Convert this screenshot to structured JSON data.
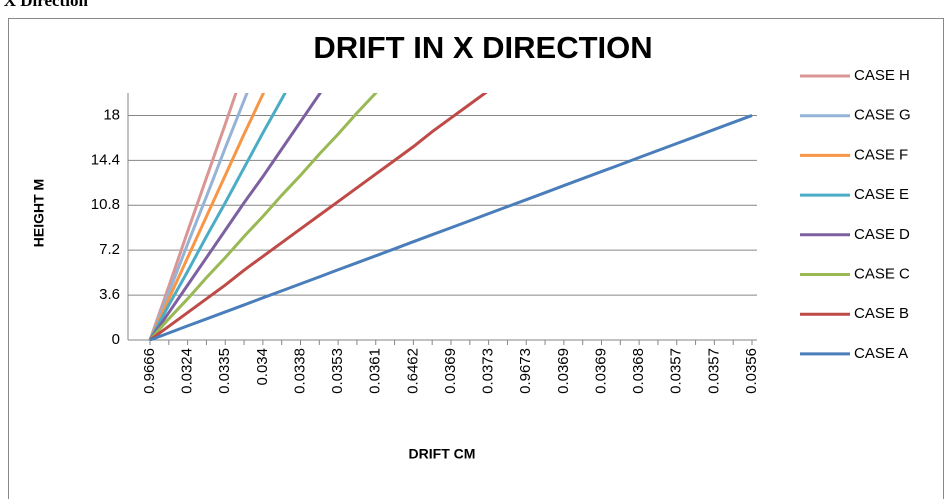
{
  "header": "n X Direction",
  "chart_data": {
    "type": "line",
    "title": "DRIFT  IN X DIRECTION",
    "xlabel": "DRIFT CM",
    "ylabel": "HEIGHT M",
    "categories": [
      "0.9666",
      null,
      "0.0324",
      null,
      "0.0335",
      null,
      "0.034",
      null,
      "0.0338",
      null,
      "0.0353",
      null,
      "0.0361",
      null,
      "0.6462",
      null,
      "0.0369",
      null,
      "0.0373",
      null,
      "0.9673",
      null,
      "0.0369",
      null,
      "0.0369",
      null,
      "0.0368",
      null,
      "0.0357",
      null,
      "0.0357",
      null,
      "0.0356"
    ],
    "ylim": [
      0,
      19.8
    ],
    "yticks": [
      0,
      3.6,
      7.2,
      10.8,
      14.4,
      18
    ],
    "grid": true,
    "legend": "right",
    "series": [
      {
        "name": "CASE H",
        "color": "#d99694",
        "values": [
          0,
          4.3,
          8.7,
          13,
          17.3,
          21.7,
          null,
          null,
          null,
          null,
          null,
          null,
          null,
          null,
          null,
          null,
          null,
          null,
          null,
          null,
          null,
          null,
          null,
          null,
          null,
          null,
          null,
          null,
          null,
          null,
          null,
          null,
          null
        ]
      },
      {
        "name": "CASE G",
        "color": "#95b3d7",
        "values": [
          0,
          3.8,
          7.7,
          11.5,
          15.4,
          19.2,
          23,
          null,
          null,
          null,
          null,
          null,
          null,
          null,
          null,
          null,
          null,
          null,
          null,
          null,
          null,
          null,
          null,
          null,
          null,
          null,
          null,
          null,
          null,
          null,
          null,
          null,
          null
        ]
      },
      {
        "name": "CASE F",
        "color": "#f79646",
        "values": [
          0,
          3.3,
          6.6,
          9.9,
          13.2,
          16.5,
          19.7,
          23,
          null,
          null,
          null,
          null,
          null,
          null,
          null,
          null,
          null,
          null,
          null,
          null,
          null,
          null,
          null,
          null,
          null,
          null,
          null,
          null,
          null,
          null,
          null,
          null,
          null
        ]
      },
      {
        "name": "CASE E",
        "color": "#4bacc6",
        "values": [
          0,
          2.8,
          5.5,
          8.3,
          11,
          13.8,
          16.6,
          19.3,
          22.1,
          null,
          null,
          null,
          null,
          null,
          null,
          null,
          null,
          null,
          null,
          null,
          null,
          null,
          null,
          null,
          null,
          null,
          null,
          null,
          null,
          null,
          null,
          null,
          null
        ]
      },
      {
        "name": "CASE D",
        "color": "#7d60a0",
        "values": [
          0,
          2.2,
          4.4,
          6.6,
          8.8,
          11,
          13.1,
          15.3,
          17.5,
          19.7,
          21.9,
          null,
          null,
          null,
          null,
          null,
          null,
          null,
          null,
          null,
          null,
          null,
          null,
          null,
          null,
          null,
          null,
          null,
          null,
          null,
          null,
          null,
          null
        ]
      },
      {
        "name": "CASE C",
        "color": "#98b954",
        "values": [
          0,
          1.7,
          3.3,
          5,
          6.6,
          8.3,
          9.9,
          11.6,
          13.2,
          14.9,
          16.5,
          18.2,
          19.8,
          21.5,
          null,
          null,
          null,
          null,
          null,
          null,
          null,
          null,
          null,
          null,
          null,
          null,
          null,
          null,
          null,
          null,
          null,
          null,
          null
        ]
      },
      {
        "name": "CASE B",
        "color": "#be4b48",
        "values": [
          0,
          1.1,
          2.2,
          3.3,
          4.4,
          5.6,
          6.7,
          7.8,
          8.9,
          10,
          11.1,
          12.2,
          13.3,
          14.4,
          15.5,
          16.7,
          17.8,
          18.9,
          20,
          21.1,
          null,
          null,
          null,
          null,
          null,
          null,
          null,
          null,
          null,
          null,
          null,
          null,
          null
        ]
      },
      {
        "name": "CASE A",
        "color": "#4a7ebb",
        "values": [
          0,
          0.56,
          1.13,
          1.69,
          2.25,
          2.81,
          3.38,
          3.94,
          4.5,
          5.06,
          5.63,
          6.19,
          6.75,
          7.31,
          7.88,
          8.44,
          9,
          9.56,
          10.13,
          10.69,
          11.25,
          11.81,
          12.38,
          12.94,
          13.5,
          14.06,
          14.63,
          15.19,
          15.75,
          16.31,
          16.88,
          17.44,
          18
        ]
      }
    ]
  }
}
